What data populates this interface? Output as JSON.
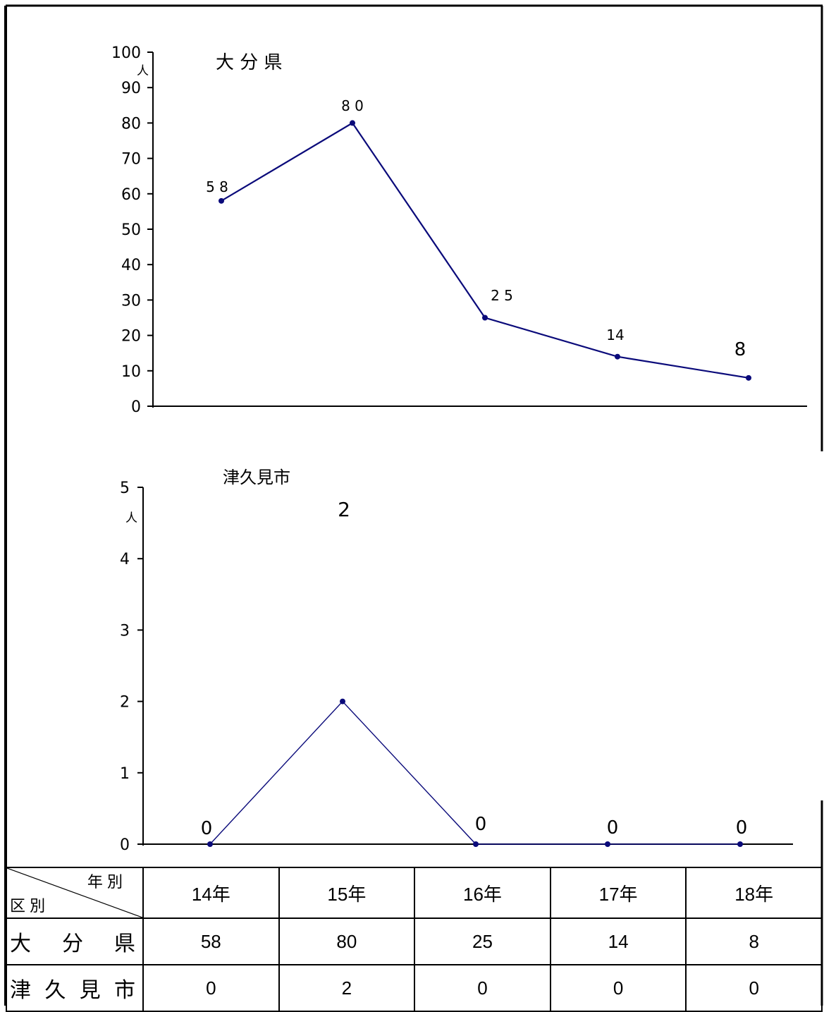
{
  "chart_data": [
    {
      "type": "line",
      "title": "大 分 県",
      "unit": "人",
      "categories": [
        "14年",
        "15年",
        "16年",
        "17年",
        "18年"
      ],
      "series": [
        {
          "values": [
            58,
            80,
            25,
            14,
            8
          ]
        }
      ],
      "data_labels": [
        "5 8",
        "8 0",
        "2 5",
        "14",
        "8"
      ],
      "ylim": [
        0,
        100
      ],
      "yticks": [
        0,
        10,
        20,
        30,
        40,
        50,
        60,
        70,
        80,
        90,
        100
      ],
      "line_color": "#0a0a7a",
      "grid": false
    },
    {
      "type": "line",
      "title": "津久見市",
      "unit": "人",
      "categories": [
        "14年",
        "15年",
        "16年",
        "17年",
        "18年"
      ],
      "series": [
        {
          "values": [
            0,
            2,
            0,
            0,
            0
          ]
        }
      ],
      "data_labels": [
        "0",
        "2",
        "0",
        "0",
        "0"
      ],
      "ylim": [
        0,
        5
      ],
      "yticks": [
        0,
        1,
        2,
        3,
        4,
        5
      ],
      "line_color": "#0a0a7a",
      "grid": false
    }
  ],
  "table": {
    "corner_top": "年 別",
    "corner_bottom": "区 別",
    "headers": [
      "14年",
      "15年",
      "16年",
      "17年",
      "18年"
    ],
    "rows": [
      {
        "label": "大 分 県",
        "values": [
          "58",
          "80",
          "25",
          "14",
          "8"
        ]
      },
      {
        "label": "津 久 見 市",
        "values": [
          "0",
          "2",
          "0",
          "0",
          "0"
        ]
      }
    ]
  }
}
